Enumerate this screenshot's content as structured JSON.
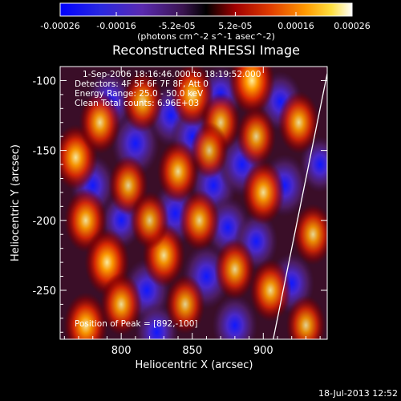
{
  "chart_data": {
    "type": "heatmap",
    "title": "Reconstructed RHESSI Image",
    "xlabel": "Heliocentric X (arcsec)",
    "ylabel": "Heliocentric Y (arcsec)",
    "xlim": [
      757,
      945
    ],
    "ylim": [
      -285,
      -90
    ],
    "x_ticks": [
      800,
      850,
      900
    ],
    "y_ticks": [
      -100,
      -150,
      -200,
      -250
    ],
    "colorbar": {
      "ticks": [
        "-0.00026",
        "-0.00016",
        "-5.2e-05",
        "5.2e-05",
        "0.00016",
        "0.00026"
      ],
      "tick_values": [
        -0.00026,
        -0.00016,
        -5.2e-05,
        5.2e-05,
        0.00016,
        0.00026
      ],
      "range": [
        -0.00026,
        0.00026
      ],
      "unit": "(photons cm^-2 s^-1 asec^-2)",
      "colormap": [
        "#0000ff",
        "#5020c0",
        "#5a1e6e",
        "#000000",
        "#c80000",
        "#ff7800",
        "#ffd200",
        "#ffffff"
      ]
    },
    "annotations": {
      "time_range": "1-Sep-2006 18:16:46.000 to 18:19:52.000",
      "detectors": "Detectors: 4F 5F 6F 7F 8F, Att 0",
      "energy": "Energy Range: 25.0 - 50.0 keV",
      "clean": "Clean     Total counts: 6.96E+03",
      "peak": "Position of Peak = [892,-100]"
    },
    "limb_curve": [
      [
        945,
        -95
      ],
      [
        920,
        -220
      ],
      [
        907,
        -285
      ]
    ],
    "hot_spots": [
      [
        768,
        -155,
        0.9
      ],
      [
        775,
        -200,
        0.85
      ],
      [
        790,
        -230,
        0.95
      ],
      [
        785,
        -130,
        0.8
      ],
      [
        775,
        -275,
        0.9
      ],
      [
        805,
        -175,
        0.7
      ],
      [
        815,
        -115,
        0.75
      ],
      [
        800,
        -260,
        0.8
      ],
      [
        830,
        -225,
        0.85
      ],
      [
        840,
        -165,
        0.8
      ],
      [
        850,
        -110,
        0.85
      ],
      [
        855,
        -200,
        0.75
      ],
      [
        845,
        -260,
        0.7
      ],
      [
        870,
        -130,
        0.7
      ],
      [
        880,
        -235,
        0.75
      ],
      [
        892,
        -100,
        1.0
      ],
      [
        900,
        -180,
        0.85
      ],
      [
        905,
        -250,
        0.8
      ],
      [
        925,
        -130,
        0.8
      ],
      [
        935,
        -210,
        0.75
      ],
      [
        930,
        -275,
        0.7
      ],
      [
        862,
        -150,
        0.6
      ],
      [
        820,
        -200,
        0.65
      ],
      [
        895,
        -140,
        0.7
      ]
    ],
    "cold_spots": [
      [
        792,
        -115,
        0.9
      ],
      [
        780,
        -175,
        0.8
      ],
      [
        810,
        -145,
        0.95
      ],
      [
        818,
        -250,
        0.9
      ],
      [
        835,
        -125,
        0.85
      ],
      [
        838,
        -195,
        0.9
      ],
      [
        860,
        -240,
        0.95
      ],
      [
        865,
        -175,
        0.85
      ],
      [
        875,
        -205,
        0.8
      ],
      [
        885,
        -160,
        0.9
      ],
      [
        880,
        -275,
        0.8
      ],
      [
        915,
        -175,
        0.85
      ],
      [
        920,
        -245,
        0.8
      ],
      [
        912,
        -115,
        0.75
      ],
      [
        800,
        -200,
        0.6
      ],
      [
        850,
        -140,
        0.7
      ],
      [
        870,
        -110,
        0.7
      ],
      [
        895,
        -215,
        0.7
      ],
      [
        825,
        -280,
        0.7
      ],
      [
        940,
        -160,
        0.6
      ]
    ]
  },
  "footer": {
    "timestamp": "18-Jul-2013 12:52"
  }
}
